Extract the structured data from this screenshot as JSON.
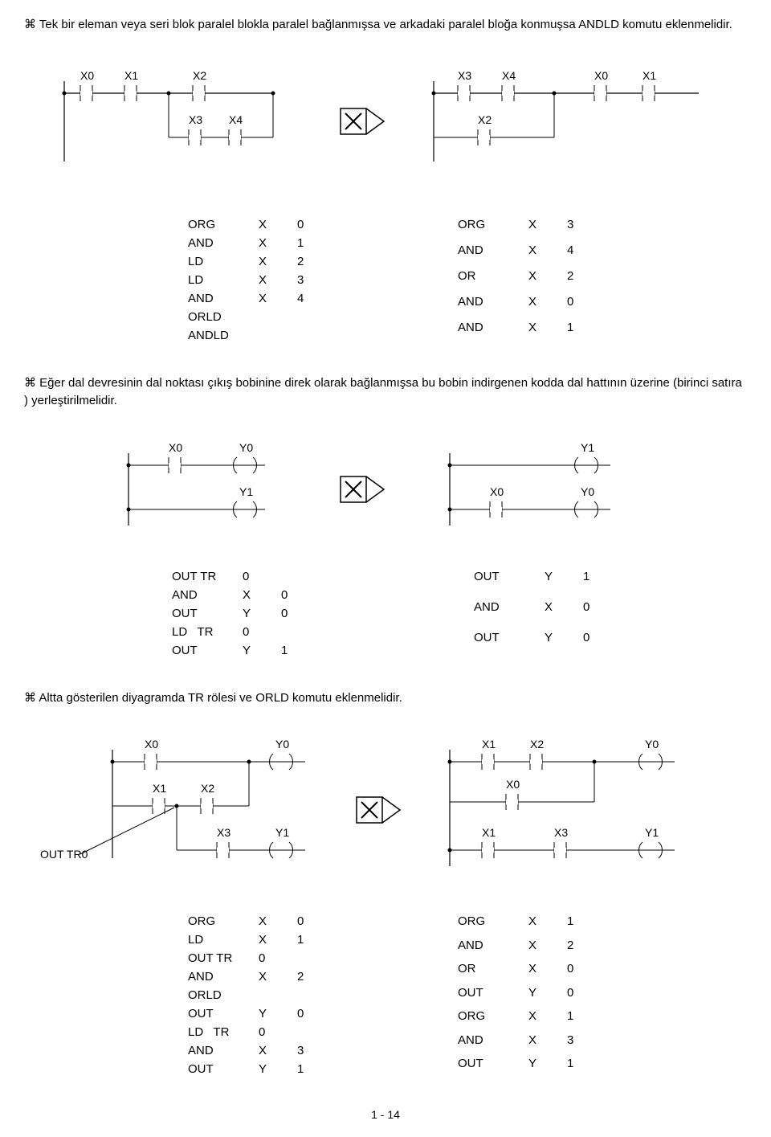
{
  "para1": "Tek bir eleman veya seri blok paralel blokla paralel bağlanmışsa ve arkadaki paralel bloğa konmuşsa ANDLD komutu eklenmelidir.",
  "para2": "Eğer dal devresinin dal noktası çıkış bobinine direk olarak bağlanmışsa bu bobin indirgenen kodda dal hattının üzerine (birinci satıra ) yerleştirilmelidir.",
  "para3": "Altta gösterilen diyagramda TR rölesi ve ORLD komutu eklenmelidir.",
  "bullet": "⌘",
  "footer": "1 - 14",
  "diag1": {
    "leftLabels": [
      "X0",
      "X1",
      "X2",
      "X3",
      "X4"
    ],
    "rightLabels": [
      "X3",
      "X4",
      "X0",
      "X1",
      "X2"
    ],
    "stroke": "#000000",
    "strokeW": 1.2
  },
  "code1L": [
    [
      "ORG",
      "X",
      "0"
    ],
    [
      "AND",
      "X",
      "1"
    ],
    [
      "LD",
      "X",
      "2"
    ],
    [
      "LD",
      "X",
      "3"
    ],
    [
      "AND",
      "X",
      "4"
    ],
    [
      "ORLD",
      "",
      ""
    ],
    [
      "ANDLD",
      "",
      ""
    ]
  ],
  "code1R": [
    [
      "ORG",
      "X",
      "3"
    ],
    [
      "AND",
      "X",
      "4"
    ],
    [
      "OR",
      "X",
      "2"
    ],
    [
      "AND",
      "X",
      "0"
    ],
    [
      "AND",
      "X",
      "1"
    ]
  ],
  "diag2": {
    "leftLabels": [
      "X0",
      "Y0",
      "Y1"
    ],
    "rightLabels": [
      "Y1",
      "X0",
      "Y0"
    ],
    "stroke": "#000000",
    "strokeW": 1.2
  },
  "code2L": [
    [
      "OUT TR",
      "0",
      ""
    ],
    [
      "AND",
      "X",
      "0"
    ],
    [
      "OUT",
      "Y",
      "0"
    ],
    [
      "LD   TR",
      "0",
      ""
    ],
    [
      "OUT",
      "Y",
      "1"
    ]
  ],
  "code2R": [
    [
      "OUT",
      "Y",
      "1"
    ],
    [
      "AND",
      "X",
      "0"
    ],
    [
      "OUT",
      "Y",
      "0"
    ]
  ],
  "diag3": {
    "leftLabels": [
      "X0",
      "Y0",
      "X1",
      "X2",
      "X3",
      "Y1"
    ],
    "rightLabels": [
      "X1",
      "X2",
      "Y0",
      "X0",
      "X1",
      "X3",
      "Y1"
    ],
    "annot": "OUT TR0",
    "stroke": "#000000",
    "strokeW": 1.2
  },
  "code3L": [
    [
      "ORG",
      "X",
      "0"
    ],
    [
      "LD",
      "X",
      "1"
    ],
    [
      "OUT TR",
      "0",
      ""
    ],
    [
      "AND",
      "X",
      "2"
    ],
    [
      "ORLD",
      "",
      ""
    ],
    [
      "OUT",
      "Y",
      "0"
    ],
    [
      "LD   TR",
      "0",
      ""
    ],
    [
      "AND",
      "X",
      "3"
    ],
    [
      "OUT",
      "Y",
      "1"
    ]
  ],
  "code3R": [
    [
      "ORG",
      "X",
      "1"
    ],
    [
      "AND",
      "X",
      "2"
    ],
    [
      "OR",
      "X",
      "0"
    ],
    [
      "OUT",
      "Y",
      "0"
    ],
    [
      "ORG",
      "X",
      "1"
    ],
    [
      "AND",
      "X",
      "3"
    ],
    [
      "OUT",
      "Y",
      "1"
    ]
  ]
}
